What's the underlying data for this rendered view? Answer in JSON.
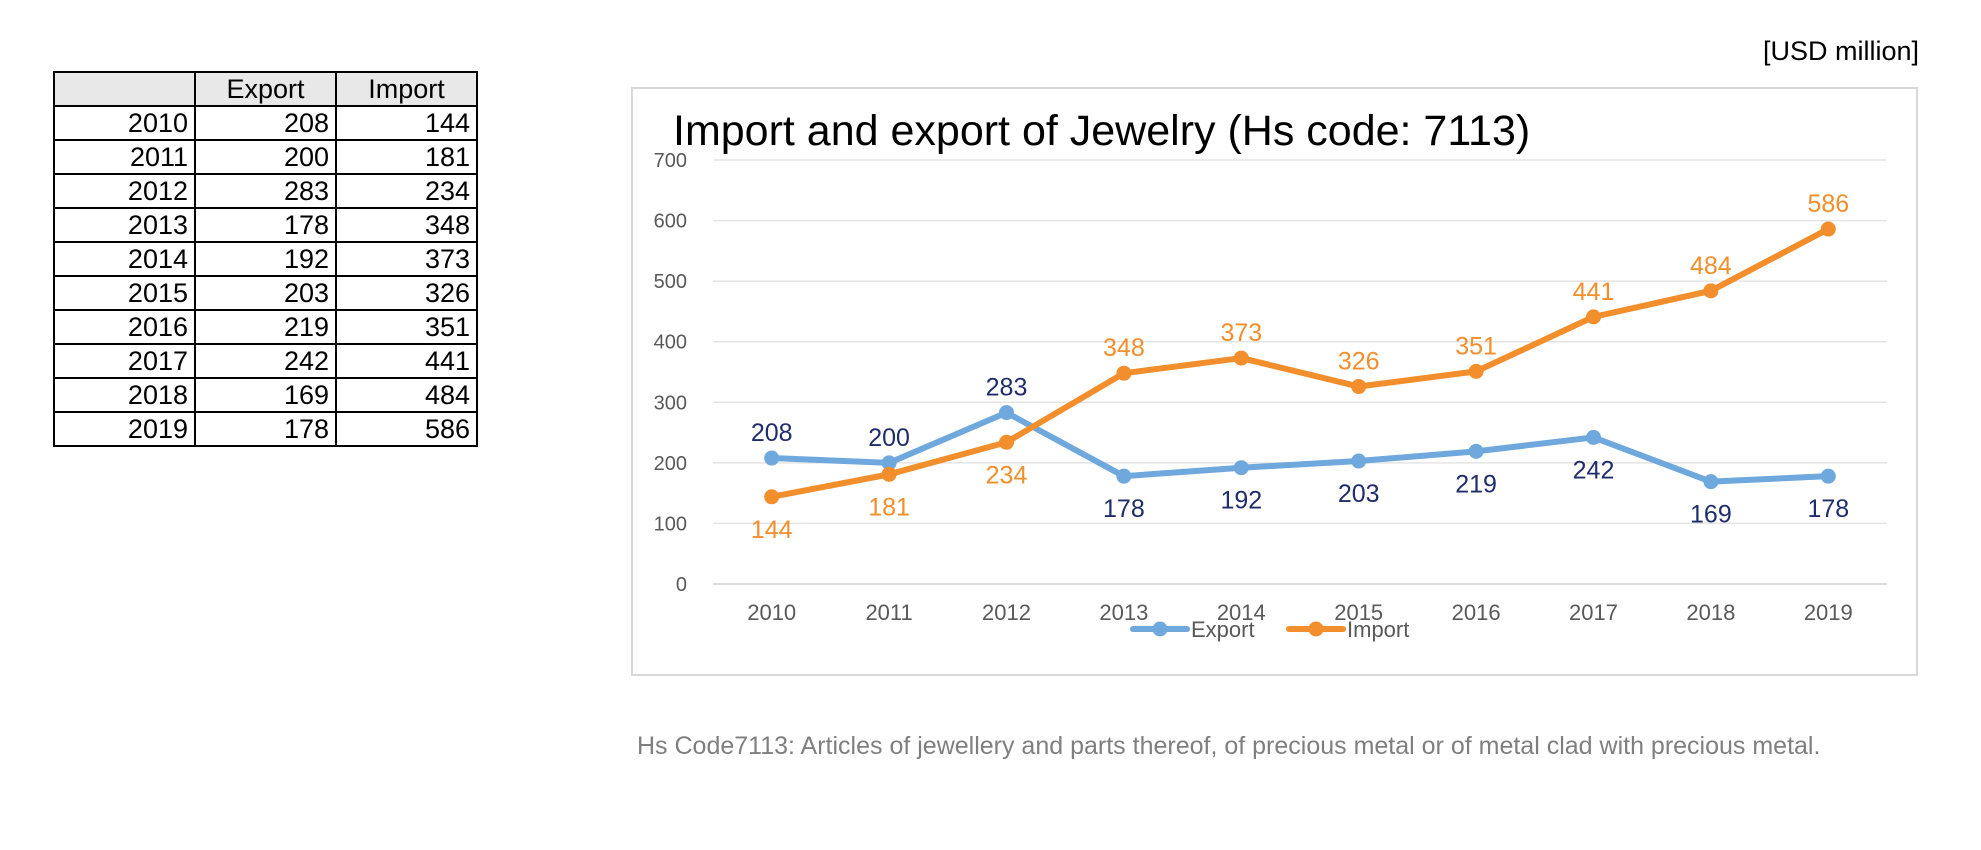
{
  "unit_label": "[USD million]",
  "table": {
    "headers": [
      "",
      "Export",
      "Import"
    ],
    "rows": [
      [
        "2010",
        "208",
        "144"
      ],
      [
        "2011",
        "200",
        "181"
      ],
      [
        "2012",
        "283",
        "234"
      ],
      [
        "2013",
        "178",
        "348"
      ],
      [
        "2014",
        "192",
        "373"
      ],
      [
        "2015",
        "203",
        "326"
      ],
      [
        "2016",
        "219",
        "351"
      ],
      [
        "2017",
        "242",
        "441"
      ],
      [
        "2018",
        "169",
        "484"
      ],
      [
        "2019",
        "178",
        "586"
      ]
    ]
  },
  "chart_data": {
    "type": "line",
    "title": "Import and export of Jewelry (Hs code: 7113)",
    "categories": [
      "2010",
      "2011",
      "2012",
      "2013",
      "2014",
      "2015",
      "2016",
      "2017",
      "2018",
      "2019"
    ],
    "series": [
      {
        "name": "Export",
        "values": [
          208,
          200,
          283,
          178,
          192,
          203,
          219,
          242,
          169,
          178
        ],
        "color": "#6fa8dc",
        "label_color": "#1f2d6b"
      },
      {
        "name": "Import",
        "values": [
          144,
          181,
          234,
          348,
          373,
          326,
          351,
          441,
          484,
          586
        ],
        "color": "#f28e2b",
        "label_color": "#f28e2b"
      }
    ],
    "ylim": [
      0,
      700
    ],
    "yticks": [
      0,
      100,
      200,
      300,
      400,
      500,
      600,
      700
    ],
    "grid": true,
    "legend": "bottom",
    "xlabel": "",
    "ylabel": ""
  },
  "footnote": "Hs Code7113: Articles of jewellery and parts thereof, of precious metal or of metal clad with precious metal."
}
